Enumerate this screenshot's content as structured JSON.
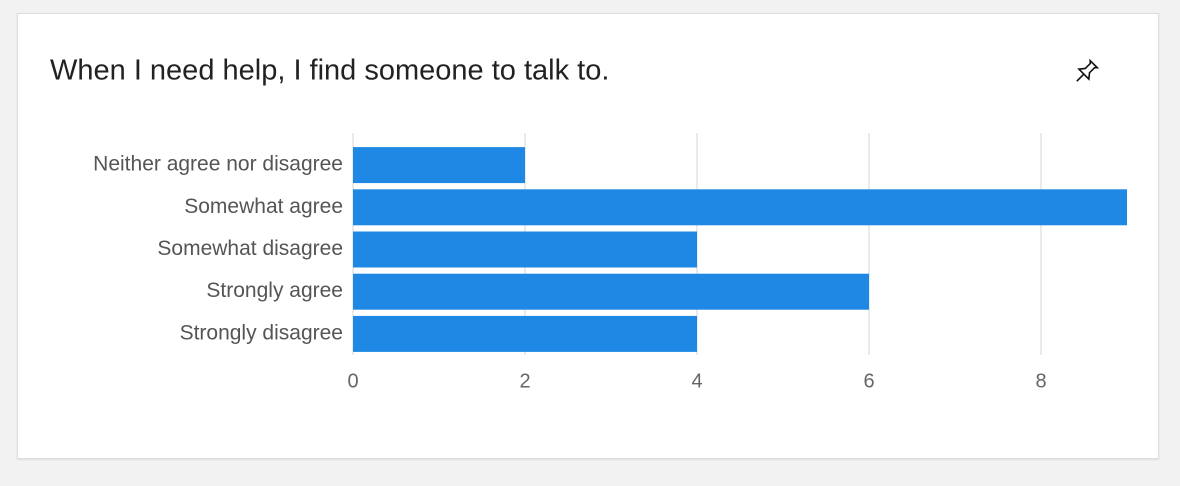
{
  "chart_data": {
    "type": "bar",
    "orientation": "horizontal",
    "title": "When I need help, I find someone to talk to.",
    "categories": [
      "Neither agree nor disagree",
      "Somewhat agree",
      "Somewhat disagree",
      "Strongly agree",
      "Strongly disagree"
    ],
    "values": [
      2,
      9,
      4,
      6,
      4
    ],
    "color": "#1f88e5",
    "xlim": [
      0,
      9
    ],
    "xticks": [
      0,
      2,
      4,
      6,
      8
    ],
    "grid": true
  }
}
